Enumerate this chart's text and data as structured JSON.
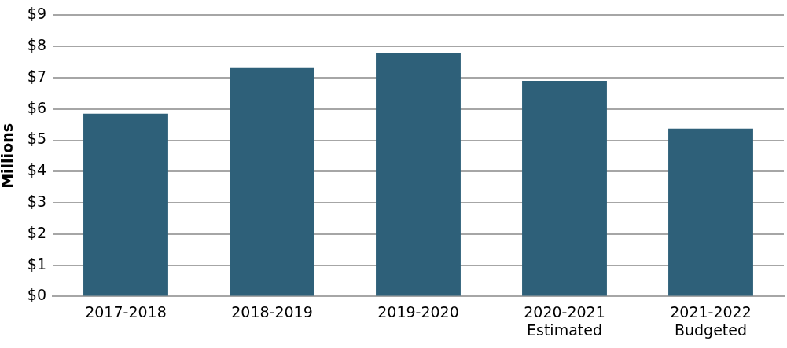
{
  "chart_data": {
    "type": "bar",
    "ylabel": "Millions",
    "categories": [
      "2017-2018",
      "2018-2019",
      "2019-2020",
      "2020-2021 Estimated",
      "2021-2022 Budgeted"
    ],
    "values": [
      5.85,
      7.33,
      7.78,
      6.9,
      5.37
    ],
    "color": "#2e6079",
    "ylim": [
      0,
      9
    ],
    "yticks": [
      {
        "value": 0,
        "label": "$0"
      },
      {
        "value": 1,
        "label": "$1"
      },
      {
        "value": 2,
        "label": "$2"
      },
      {
        "value": 3,
        "label": "$3"
      },
      {
        "value": 4,
        "label": "$4"
      },
      {
        "value": 5,
        "label": "$5"
      },
      {
        "value": 6,
        "label": "$6"
      },
      {
        "value": 7,
        "label": "$7"
      },
      {
        "value": 8,
        "label": "$8"
      },
      {
        "value": 9,
        "label": "$9"
      }
    ],
    "grid": "y"
  }
}
